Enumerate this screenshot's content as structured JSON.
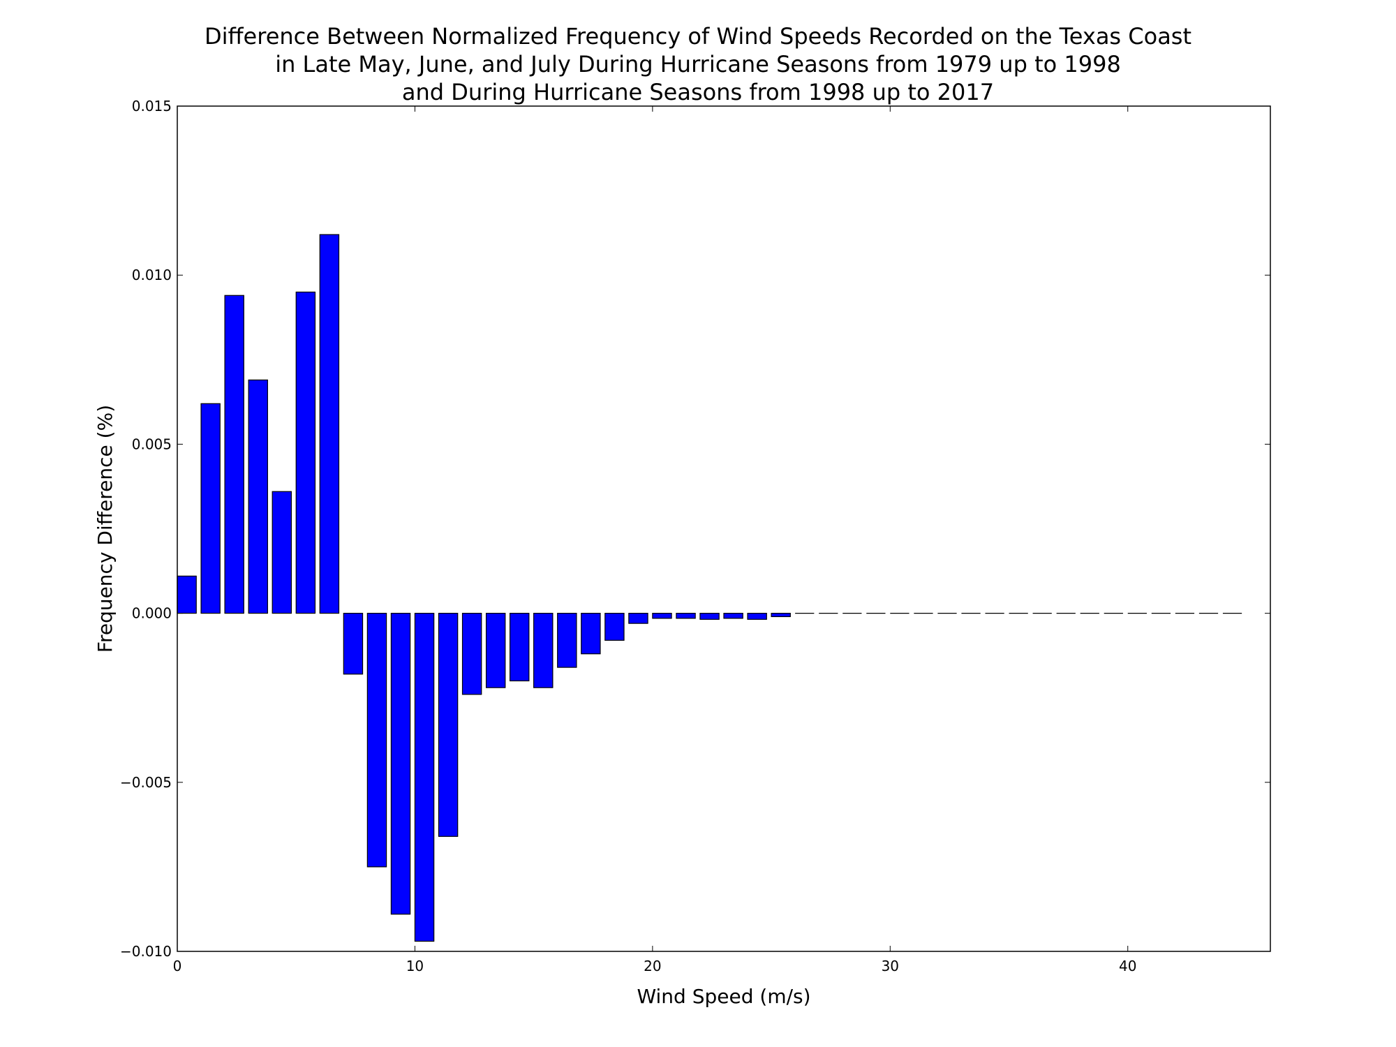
{
  "chart_data": {
    "type": "bar",
    "title": [
      "Difference Between Normalized Frequency of Wind Speeds Recorded on the Texas Coast",
      "in Late May, June, and July During Hurricane Seasons from 1979 up to 1998",
      "and During Hurricane Seasons from 1998 up to 2017"
    ],
    "xlabel": "Wind Speed (m/s)",
    "ylabel": "Frequency Difference (%)",
    "xlim": [
      0,
      46
    ],
    "ylim": [
      -0.01,
      0.015
    ],
    "xticks": [
      0,
      10,
      20,
      30,
      40
    ],
    "yticks": [
      -0.01,
      -0.005,
      0.0,
      0.005,
      0.01,
      0.015
    ],
    "ytick_labels": [
      "−0.010",
      "−0.005",
      "0.000",
      "0.005",
      "0.010",
      "0.015"
    ],
    "xtick_labels": [
      "0",
      "10",
      "20",
      "30",
      "40"
    ],
    "bar_width": 0.8,
    "grid": false,
    "colors": {
      "bar_fill": "#0000ff",
      "bar_edge": "#000000"
    },
    "x": [
      0,
      1,
      2,
      3,
      4,
      5,
      6,
      7,
      8,
      9,
      10,
      11,
      12,
      13,
      14,
      15,
      16,
      17,
      18,
      19,
      20,
      21,
      22,
      23,
      24,
      25,
      26,
      27,
      28,
      29,
      30,
      31,
      32,
      33,
      34,
      35,
      36,
      37,
      38,
      39,
      40,
      41,
      42,
      43,
      44
    ],
    "values": [
      0.0011,
      0.0062,
      0.0094,
      0.0069,
      0.0036,
      0.0095,
      0.0112,
      -0.0018,
      -0.0075,
      -0.0089,
      -0.0097,
      -0.0066,
      -0.0024,
      -0.0022,
      -0.002,
      -0.0022,
      -0.0016,
      -0.0012,
      -0.0008,
      -0.0003,
      -0.00015,
      -0.00015,
      -0.00018,
      -0.00015,
      -0.00018,
      -0.0001,
      0,
      0,
      0,
      0,
      0,
      0,
      0,
      0,
      0,
      0,
      0,
      0,
      0,
      0,
      0,
      0,
      0,
      0,
      0
    ]
  }
}
